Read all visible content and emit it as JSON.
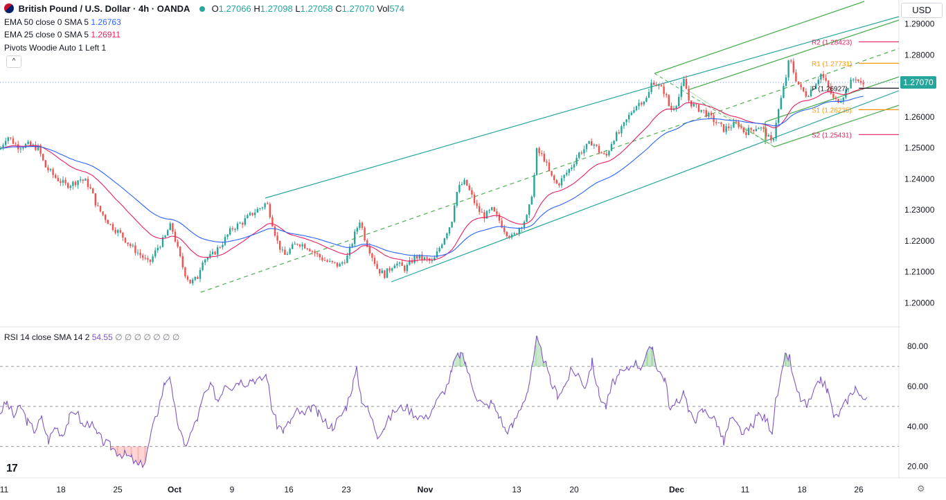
{
  "header": {
    "symbol": "British Pound / U.S. Dollar · 4h · OANDA",
    "ohlc": [
      {
        "label": "O",
        "value": "1.27066"
      },
      {
        "label": "H",
        "value": "1.27098"
      },
      {
        "label": "L",
        "value": "1.27058"
      },
      {
        "label": "C",
        "value": "1.27070"
      }
    ],
    "vol_label": "Vol",
    "vol_value": "574"
  },
  "indicators": {
    "ema50_label": "EMA 50 close 0 SMA 5",
    "ema50_value": "1.26763",
    "ema25_label": "EMA 25 close 0 SMA 5",
    "ema25_value": "1.26911",
    "pivots_label": "Pivots Woodie Auto 1 Left 1",
    "rsi_label": "RSI 14 close SMA 14 2",
    "rsi_value": "54.55",
    "rsi_extras": "∅ ∅ ∅ ∅ ∅ ∅ ∅"
  },
  "toolbar": {
    "currency": "USD",
    "collapse_glyph": "^",
    "logo": "17"
  },
  "colors": {
    "up": "#26a69a",
    "down": "#ef5350",
    "ema50": "#2962ff",
    "ema25": "#e91e63",
    "rsi": "#7e57c2",
    "pitchfork": "#4caf50",
    "trendline": "#26a69a",
    "pivot_resistance": "#e91e63",
    "pivot_mid": "#131722",
    "pivot_support": "#ff9800"
  },
  "chart_data": {
    "type": "candlestick",
    "title": "British Pound / U.S. Dollar",
    "price_axis": {
      "ticks": [
        "1.29000",
        "1.28000",
        "1.27000",
        "1.26000",
        "1.25000",
        "1.24000",
        "1.23000",
        "1.22000",
        "1.21000",
        "1.20000"
      ],
      "range": [
        1.1945,
        1.2955
      ]
    },
    "time_axis": [
      "11",
      "18",
      "25",
      "Oct",
      "9",
      "16",
      "23",
      "Nov",
      "13",
      "20",
      "Dec",
      "11",
      "18",
      "26"
    ],
    "last_price": "1.27070",
    "price_path": [
      [
        0,
        1.2495
      ],
      [
        10,
        1.254
      ],
      [
        25,
        1.2505
      ],
      [
        40,
        1.251
      ],
      [
        55,
        1.25
      ],
      [
        65,
        1.244
      ],
      [
        80,
        1.2405
      ],
      [
        95,
        1.238
      ],
      [
        105,
        1.2385
      ],
      [
        115,
        1.24
      ],
      [
        125,
        1.239
      ],
      [
        132,
        1.236
      ],
      [
        140,
        1.231
      ],
      [
        150,
        1.228
      ],
      [
        160,
        1.225
      ],
      [
        175,
        1.222
      ],
      [
        190,
        1.218
      ],
      [
        205,
        1.215
      ],
      [
        215,
        1.2125
      ],
      [
        228,
        1.218
      ],
      [
        238,
        1.221
      ],
      [
        245,
        1.225
      ],
      [
        250,
        1.223
      ],
      [
        258,
        1.216
      ],
      [
        266,
        1.21
      ],
      [
        275,
        1.2065
      ],
      [
        285,
        1.208
      ],
      [
        292,
        1.214
      ],
      [
        305,
        1.215
      ],
      [
        320,
        1.219
      ],
      [
        335,
        1.224
      ],
      [
        350,
        1.226
      ],
      [
        365,
        1.229
      ],
      [
        378,
        1.231
      ],
      [
        385,
        1.2325
      ],
      [
        392,
        1.227
      ],
      [
        400,
        1.22
      ],
      [
        410,
        1.215
      ],
      [
        420,
        1.2175
      ],
      [
        430,
        1.2195
      ],
      [
        445,
        1.218
      ],
      [
        460,
        1.215
      ],
      [
        475,
        1.213
      ],
      [
        490,
        1.212
      ],
      [
        502,
        1.215
      ],
      [
        512,
        1.222
      ],
      [
        520,
        1.227
      ],
      [
        525,
        1.222
      ],
      [
        532,
        1.218
      ],
      [
        545,
        1.211
      ],
      [
        555,
        1.209
      ],
      [
        570,
        1.213
      ],
      [
        585,
        1.211
      ],
      [
        600,
        1.215
      ],
      [
        615,
        1.214
      ],
      [
        625,
        1.213
      ],
      [
        635,
        1.218
      ],
      [
        645,
        1.223
      ],
      [
        652,
        1.226
      ],
      [
        658,
        1.235
      ],
      [
        665,
        1.238
      ],
      [
        672,
        1.239
      ],
      [
        680,
        1.235
      ],
      [
        690,
        1.23
      ],
      [
        700,
        1.228
      ],
      [
        710,
        1.23
      ],
      [
        720,
        1.227
      ],
      [
        730,
        1.223
      ],
      [
        740,
        1.221
      ],
      [
        752,
        1.225
      ],
      [
        762,
        1.228
      ],
      [
        770,
        1.238
      ],
      [
        775,
        1.249
      ],
      [
        785,
        1.247
      ],
      [
        795,
        1.241
      ],
      [
        805,
        1.238
      ],
      [
        815,
        1.241
      ],
      [
        825,
        1.244
      ],
      [
        835,
        1.248
      ],
      [
        845,
        1.25
      ],
      [
        855,
        1.252
      ],
      [
        865,
        1.249
      ],
      [
        875,
        1.247
      ],
      [
        885,
        1.253
      ],
      [
        895,
        1.255
      ],
      [
        905,
        1.259
      ],
      [
        915,
        1.263
      ],
      [
        925,
        1.265
      ],
      [
        935,
        1.266
      ],
      [
        942,
        1.272
      ],
      [
        950,
        1.27
      ],
      [
        960,
        1.268
      ],
      [
        968,
        1.262
      ],
      [
        978,
        1.265
      ],
      [
        988,
        1.272
      ],
      [
        995,
        1.265
      ],
      [
        1005,
        1.263
      ],
      [
        1015,
        1.262
      ],
      [
        1025,
        1.26
      ],
      [
        1035,
        1.258
      ],
      [
        1045,
        1.256
      ],
      [
        1055,
        1.257
      ],
      [
        1065,
        1.258
      ],
      [
        1075,
        1.255
      ],
      [
        1085,
        1.256
      ],
      [
        1095,
        1.257
      ],
      [
        1105,
        1.255
      ],
      [
        1115,
        1.251
      ],
      [
        1120,
        1.258
      ],
      [
        1128,
        1.266
      ],
      [
        1135,
        1.273
      ],
      [
        1140,
        1.279
      ],
      [
        1148,
        1.273
      ],
      [
        1156,
        1.269
      ],
      [
        1165,
        1.267
      ],
      [
        1175,
        1.27
      ],
      [
        1185,
        1.274
      ],
      [
        1195,
        1.27
      ],
      [
        1205,
        1.265
      ],
      [
        1215,
        1.266
      ],
      [
        1225,
        1.27
      ],
      [
        1235,
        1.273
      ],
      [
        1243,
        1.2705
      ],
      [
        1252,
        1.2707
      ]
    ],
    "pivots": [
      {
        "label": "R2 (1.28423)",
        "value": 1.28423,
        "kind": "resistance"
      },
      {
        "label": "R1 (1.27731)",
        "value": 1.27731,
        "kind": "support"
      },
      {
        "label": "P (1.26927)",
        "value": 1.26927,
        "kind": "mid"
      },
      {
        "label": "S1 (1.26235)",
        "value": 1.26235,
        "kind": "support"
      },
      {
        "label": "S2 (1.25431)",
        "value": 1.25431,
        "kind": "resistance"
      }
    ],
    "rsi": {
      "ticks": [
        "80.00",
        "60.00",
        "40.00",
        "20.00"
      ],
      "range": [
        15,
        87
      ],
      "bands": [
        30,
        50,
        70
      ],
      "values": [
        [
          0,
          47
        ],
        [
          10,
          52
        ],
        [
          20,
          45
        ],
        [
          30,
          50
        ],
        [
          40,
          42
        ],
        [
          50,
          38
        ],
        [
          60,
          44
        ],
        [
          70,
          33
        ],
        [
          80,
          40
        ],
        [
          90,
          36
        ],
        [
          100,
          44
        ],
        [
          110,
          48
        ],
        [
          120,
          40
        ],
        [
          130,
          42
        ],
        [
          140,
          36
        ],
        [
          150,
          32
        ],
        [
          160,
          30
        ],
        [
          170,
          27
        ],
        [
          180,
          26
        ],
        [
          190,
          24
        ],
        [
          200,
          20
        ],
        [
          210,
          23
        ],
        [
          218,
          36
        ],
        [
          228,
          48
        ],
        [
          238,
          62
        ],
        [
          245,
          66
        ],
        [
          250,
          52
        ],
        [
          258,
          40
        ],
        [
          266,
          30
        ],
        [
          275,
          36
        ],
        [
          285,
          44
        ],
        [
          295,
          56
        ],
        [
          305,
          60
        ],
        [
          315,
          53
        ],
        [
          325,
          62
        ],
        [
          335,
          60
        ],
        [
          345,
          63
        ],
        [
          355,
          62
        ],
        [
          365,
          64
        ],
        [
          375,
          63
        ],
        [
          385,
          66
        ],
        [
          392,
          50
        ],
        [
          400,
          41
        ],
        [
          410,
          38
        ],
        [
          420,
          43
        ],
        [
          430,
          48
        ],
        [
          440,
          45
        ],
        [
          450,
          50
        ],
        [
          460,
          46
        ],
        [
          470,
          42
        ],
        [
          480,
          40
        ],
        [
          490,
          44
        ],
        [
          500,
          50
        ],
        [
          510,
          62
        ],
        [
          515,
          68
        ],
        [
          522,
          54
        ],
        [
          532,
          48
        ],
        [
          545,
          36
        ],
        [
          555,
          40
        ],
        [
          570,
          48
        ],
        [
          585,
          50
        ],
        [
          600,
          46
        ],
        [
          615,
          44
        ],
        [
          630,
          52
        ],
        [
          645,
          60
        ],
        [
          652,
          67
        ],
        [
          658,
          74
        ],
        [
          665,
          76
        ],
        [
          672,
          72
        ],
        [
          680,
          62
        ],
        [
          690,
          54
        ],
        [
          700,
          50
        ],
        [
          710,
          52
        ],
        [
          720,
          46
        ],
        [
          730,
          38
        ],
        [
          740,
          40
        ],
        [
          752,
          50
        ],
        [
          762,
          58
        ],
        [
          770,
          72
        ],
        [
          775,
          83
        ],
        [
          785,
          74
        ],
        [
          795,
          62
        ],
        [
          805,
          56
        ],
        [
          815,
          60
        ],
        [
          825,
          68
        ],
        [
          835,
          66
        ],
        [
          845,
          60
        ],
        [
          855,
          72
        ],
        [
          865,
          56
        ],
        [
          875,
          50
        ],
        [
          885,
          62
        ],
        [
          895,
          66
        ],
        [
          905,
          68
        ],
        [
          915,
          72
        ],
        [
          925,
          70
        ],
        [
          935,
          76
        ],
        [
          942,
          80
        ],
        [
          950,
          68
        ],
        [
          960,
          64
        ],
        [
          968,
          48
        ],
        [
          978,
          52
        ],
        [
          988,
          58
        ],
        [
          995,
          46
        ],
        [
          1005,
          44
        ],
        [
          1015,
          48
        ],
        [
          1025,
          46
        ],
        [
          1035,
          42
        ],
        [
          1045,
          32
        ],
        [
          1055,
          44
        ],
        [
          1065,
          40
        ],
        [
          1075,
          36
        ],
        [
          1085,
          40
        ],
        [
          1095,
          46
        ],
        [
          1105,
          44
        ],
        [
          1115,
          38
        ],
        [
          1120,
          52
        ],
        [
          1128,
          64
        ],
        [
          1135,
          76
        ],
        [
          1140,
          74
        ],
        [
          1148,
          60
        ],
        [
          1156,
          54
        ],
        [
          1165,
          50
        ],
        [
          1175,
          56
        ],
        [
          1185,
          64
        ],
        [
          1195,
          58
        ],
        [
          1205,
          44
        ],
        [
          1215,
          48
        ],
        [
          1225,
          54
        ],
        [
          1235,
          60
        ],
        [
          1243,
          54
        ],
        [
          1252,
          54.55
        ]
      ]
    }
  }
}
